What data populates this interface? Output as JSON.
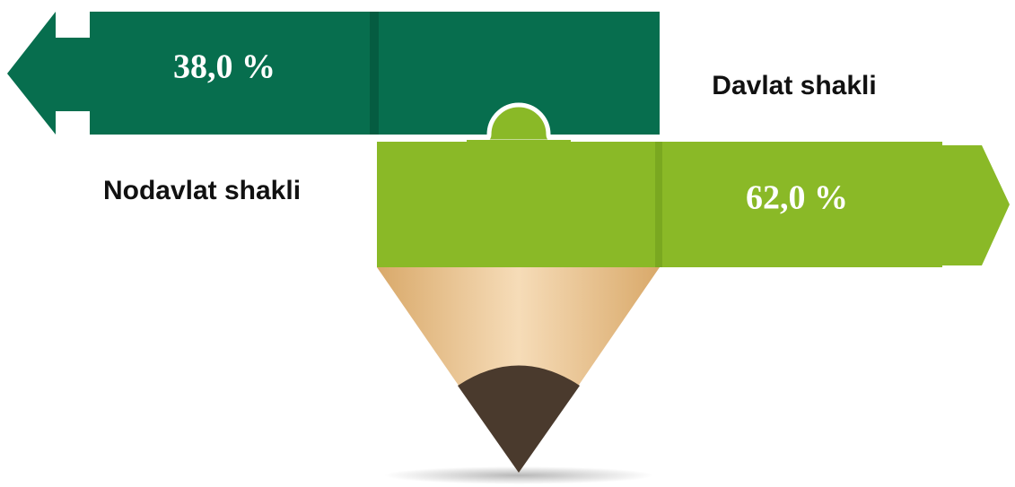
{
  "left_arrow": {
    "value_label": "38,0 %",
    "label": "Nodavlat shakli"
  },
  "right_arrow": {
    "value_label": "62,0 %",
    "label": "Davlat shakli"
  }
}
